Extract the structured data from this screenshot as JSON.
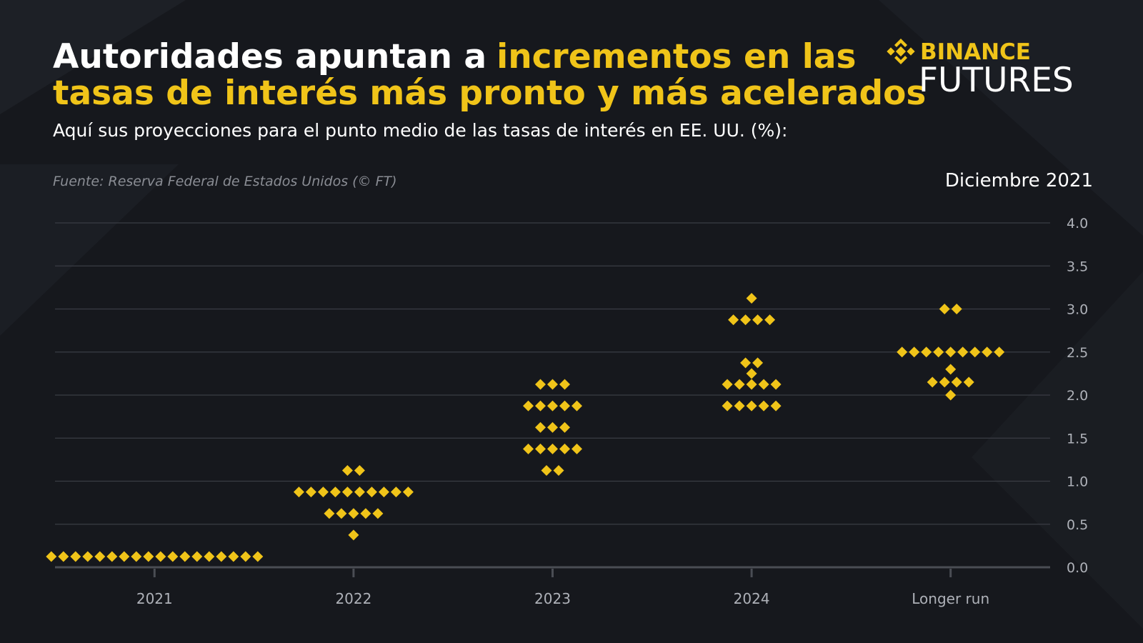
{
  "header": {
    "title_plain": "Autoridades apuntan a",
    "title_highlight": [
      "incrementos en las",
      "tasas de interés más pronto y más acelerados"
    ],
    "subtitle": "Aquí sus proyecciones para el punto medio de las tasas de interés en EE. UU. (%):",
    "source": "Fuente: Reserva Federal de Estados Unidos (© FT)",
    "date": "Diciembre 2021"
  },
  "logo": {
    "brand": "BINANCE",
    "product": "FUTURES"
  },
  "chart_data": {
    "type": "dot",
    "color": "#f0c419",
    "categories": [
      "2021",
      "2022",
      "2023",
      "2024",
      "Longer run"
    ],
    "values": [
      [
        0.125,
        0.125,
        0.125,
        0.125,
        0.125,
        0.125,
        0.125,
        0.125,
        0.125,
        0.125,
        0.125,
        0.125,
        0.125,
        0.125,
        0.125,
        0.125,
        0.125,
        0.125
      ],
      [
        1.125,
        1.125,
        0.875,
        0.875,
        0.875,
        0.875,
        0.875,
        0.875,
        0.875,
        0.875,
        0.875,
        0.875,
        0.625,
        0.625,
        0.625,
        0.625,
        0.625,
        0.375
      ],
      [
        2.125,
        2.125,
        2.125,
        1.875,
        1.875,
        1.875,
        1.875,
        1.875,
        1.625,
        1.625,
        1.625,
        1.375,
        1.375,
        1.375,
        1.375,
        1.375,
        1.125,
        1.125
      ],
      [
        3.125,
        2.875,
        2.875,
        2.875,
        2.875,
        2.375,
        2.375,
        2.25,
        2.125,
        2.125,
        2.125,
        2.125,
        2.125,
        1.875,
        1.875,
        1.875,
        1.875,
        1.875
      ],
      [
        3.0,
        3.0,
        2.5,
        2.5,
        2.5,
        2.5,
        2.5,
        2.5,
        2.5,
        2.5,
        2.5,
        2.3,
        2.15,
        2.15,
        2.15,
        2.15,
        2.0
      ]
    ],
    "ylim": [
      0,
      4
    ],
    "yticks": [
      {
        "value": 0,
        "label": "0.0"
      },
      {
        "value": 0.5,
        "label": "0.5"
      },
      {
        "value": 1,
        "label": "1.0"
      },
      {
        "value": 1.5,
        "label": "1.5"
      },
      {
        "value": 2,
        "label": "2.0"
      },
      {
        "value": 2.5,
        "label": "2.5"
      },
      {
        "value": 3,
        "label": "3.0"
      },
      {
        "value": 3.5,
        "label": "3.5"
      },
      {
        "value": 4,
        "label": "4.0"
      }
    ],
    "grid": true
  }
}
